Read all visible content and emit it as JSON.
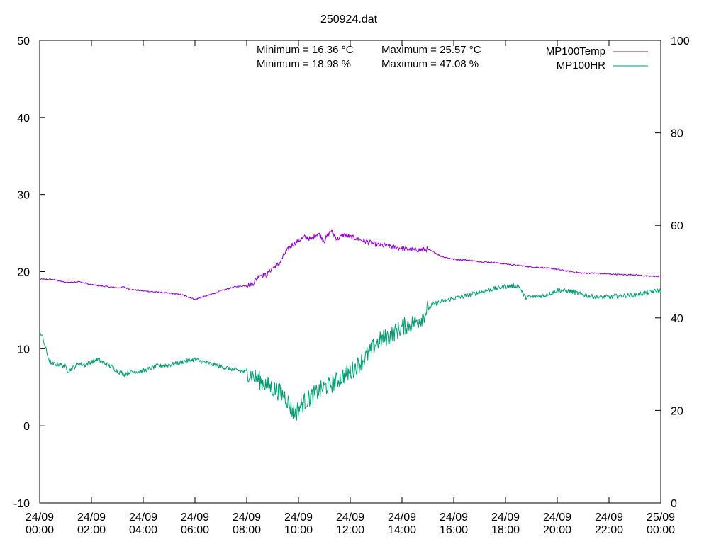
{
  "chart_data": {
    "type": "line",
    "title": "250924.dat",
    "x_tick_labels": [
      {
        "date": "24/09",
        "time": "00:00"
      },
      {
        "date": "24/09",
        "time": "02:00"
      },
      {
        "date": "24/09",
        "time": "04:00"
      },
      {
        "date": "24/09",
        "time": "06:00"
      },
      {
        "date": "24/09",
        "time": "08:00"
      },
      {
        "date": "24/09",
        "time": "10:00"
      },
      {
        "date": "24/09",
        "time": "12:00"
      },
      {
        "date": "24/09",
        "time": "14:00"
      },
      {
        "date": "24/09",
        "time": "16:00"
      },
      {
        "date": "24/09",
        "time": "18:00"
      },
      {
        "date": "24/09",
        "time": "20:00"
      },
      {
        "date": "24/09",
        "time": "22:00"
      },
      {
        "date": "25/09",
        "time": "00:00"
      }
    ],
    "xlim_hours": [
      0,
      24
    ],
    "y_left": {
      "ticks": [
        "-10",
        "0",
        "10",
        "20",
        "30",
        "40",
        "50"
      ],
      "lim": [
        -10,
        50
      ]
    },
    "y_right": {
      "ticks": [
        "0",
        "20",
        "40",
        "60",
        "80",
        "100"
      ],
      "lim": [
        0,
        100
      ]
    },
    "grid": false,
    "legend_placement": "top-right",
    "annotations": {
      "temp_min": "Minimum = 16.36 °C",
      "temp_max": "Maximum = 25.57 °C",
      "hr_min": "Minimum = 18.98 %",
      "hr_max": "Maximum = 47.08 %"
    },
    "series": [
      {
        "name": "MP100Temp",
        "axis": "left",
        "color": "#9400d3",
        "noise": 0.08,
        "x_hours": [
          0,
          0.5,
          1,
          1.5,
          2,
          3,
          3.25,
          3.5,
          4,
          5,
          5.5,
          6,
          6.5,
          7,
          7.5,
          8,
          8.25,
          8.5,
          8.75,
          9,
          9.25,
          9.5,
          9.75,
          10,
          10.25,
          10.5,
          10.75,
          11,
          11.25,
          11.5,
          11.75,
          12,
          12.25,
          12.5,
          12.75,
          13,
          13.5,
          14,
          14.5,
          15,
          15.25,
          15.5,
          16,
          16.5,
          17,
          17.5,
          18,
          18.5,
          19,
          19.5,
          20,
          20.5,
          21,
          21.5,
          22,
          22.5,
          23,
          23.5,
          24
        ],
        "values": [
          19.0,
          19.0,
          18.6,
          18.7,
          18.3,
          17.9,
          18.0,
          17.7,
          17.5,
          17.2,
          17.0,
          16.4,
          16.9,
          17.5,
          18.0,
          18.2,
          18.5,
          19.6,
          19.5,
          20.5,
          21.0,
          22.5,
          23.5,
          24.0,
          24.5,
          24.2,
          25.0,
          24.0,
          25.3,
          24.2,
          24.8,
          24.5,
          24.3,
          24.0,
          23.8,
          23.5,
          23.3,
          23.0,
          22.8,
          22.9,
          22.5,
          22.0,
          21.6,
          21.5,
          21.3,
          21.2,
          21.0,
          20.8,
          20.6,
          20.5,
          20.3,
          20.0,
          19.8,
          19.8,
          19.7,
          19.6,
          19.6,
          19.4,
          19.4
        ]
      },
      {
        "name": "MP100HR",
        "axis": "right",
        "color": "#009e73",
        "noise": 0.5,
        "x_hours": [
          0,
          0.1,
          0.2,
          0.3,
          0.4,
          0.5,
          0.75,
          1,
          1.1,
          1.25,
          1.5,
          1.75,
          2,
          2.25,
          2.5,
          2.75,
          3,
          3.25,
          3.5,
          4,
          4.5,
          5,
          5.5,
          6,
          6.5,
          7,
          7.5,
          8,
          8.5,
          9,
          9.25,
          9.5,
          9.75,
          9.9,
          10,
          10.25,
          10.5,
          10.75,
          11,
          11.25,
          11.5,
          11.75,
          12,
          12.25,
          12.5,
          12.75,
          13,
          13.25,
          13.5,
          13.75,
          14,
          14.25,
          14.5,
          14.75,
          15,
          15.25,
          15.5,
          16,
          16.5,
          17,
          17.5,
          18,
          18.5,
          18.75,
          19,
          19.5,
          20,
          20.5,
          21,
          21.5,
          22,
          22.5,
          23,
          23.5,
          24
        ],
        "values": [
          37,
          36,
          34,
          32,
          30.5,
          30,
          30,
          29.5,
          28.5,
          29.0,
          30.2,
          29.8,
          30.5,
          31.0,
          30.2,
          29.5,
          28.5,
          27.8,
          28.3,
          28.5,
          29.5,
          29.8,
          30.5,
          31.0,
          30.2,
          29.5,
          28.8,
          28.3,
          26.5,
          24.8,
          24.0,
          23.0,
          20.0,
          19.3,
          20.5,
          22.0,
          23.0,
          24.0,
          25.0,
          25.5,
          26.5,
          27.5,
          28.3,
          29.5,
          31.0,
          32.5,
          34.5,
          35.5,
          36.0,
          37.0,
          38.0,
          38.5,
          39.0,
          40.0,
          42.0,
          43.0,
          43.5,
          44.2,
          44.8,
          45.5,
          46.2,
          46.8,
          47.0,
          44.5,
          44.5,
          44.8,
          46.0,
          45.8,
          45.0,
          44.5,
          44.5,
          44.8,
          45.0,
          45.5,
          46.0
        ]
      }
    ]
  }
}
